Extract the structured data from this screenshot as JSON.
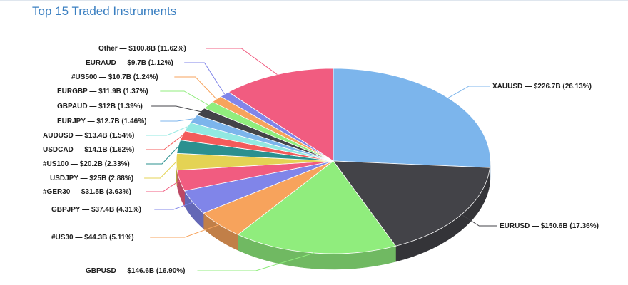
{
  "chart_title": "Top 15 Traded Instruments",
  "chart_data": {
    "type": "pie",
    "title": "Top 15 Traded Instruments",
    "style": "3d",
    "slices": [
      {
        "name": "XAUUSD",
        "value": 226.7,
        "label": "XAUUSD — $226.7B (26.13%)",
        "color": "#7cb5ec"
      },
      {
        "name": "EURUSD",
        "value": 150.6,
        "label": "EURUSD — $150.6B (17.36%)",
        "color": "#434348"
      },
      {
        "name": "GBPUSD",
        "value": 146.6,
        "label": "GBPUSD — $146.6B (16.90%)",
        "color": "#90ed7d"
      },
      {
        "name": "#US30",
        "value": 44.3,
        "label": "#US30 — $44.3B (5.11%)",
        "color": "#f7a35c"
      },
      {
        "name": "GBPJPY",
        "value": 37.4,
        "label": "GBPJPY — $37.4B (4.31%)",
        "color": "#8085e9"
      },
      {
        "name": "#GER30",
        "value": 31.5,
        "label": "#GER30 — $31.5B (3.63%)",
        "color": "#f15c80"
      },
      {
        "name": "USDJPY",
        "value": 25,
        "label": "USDJPY — $25B (2.88%)",
        "color": "#e4d354"
      },
      {
        "name": "#US100",
        "value": 20.2,
        "label": "#US100 — $20.2B (2.33%)",
        "color": "#2b908f"
      },
      {
        "name": "USDCAD",
        "value": 14.1,
        "label": "USDCAD — $14.1B (1.62%)",
        "color": "#f45b5b"
      },
      {
        "name": "AUDUSD",
        "value": 13.4,
        "label": "AUDUSD — $13.4B (1.54%)",
        "color": "#91e8e1"
      },
      {
        "name": "EURJPY",
        "value": 12.7,
        "label": "EURJPY — $12.7B (1.46%)",
        "color": "#7cb5ec"
      },
      {
        "name": "GBPAUD",
        "value": 12,
        "label": "GBPAUD — $12B (1.39%)",
        "color": "#434348"
      },
      {
        "name": "EURGBP",
        "value": 11.9,
        "label": "EURGBP — $11.9B (1.37%)",
        "color": "#90ed7d"
      },
      {
        "name": "#US500",
        "value": 10.7,
        "label": "#US500 — $10.7B (1.24%)",
        "color": "#f7a35c"
      },
      {
        "name": "EURAUD",
        "value": 9.7,
        "label": "EURAUD — $9.7B (1.12%)",
        "color": "#8085e9"
      },
      {
        "name": "Other",
        "value": 100.8,
        "label": "Other — $100.8B (11.62%)",
        "color": "#f15c80"
      }
    ]
  }
}
